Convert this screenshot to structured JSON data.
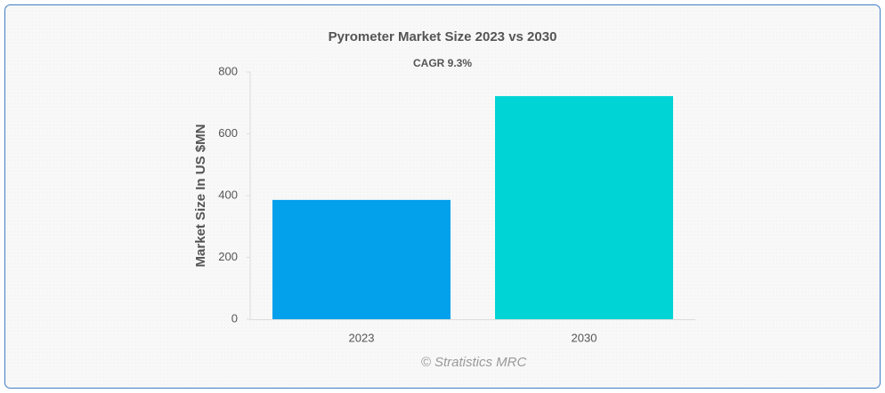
{
  "chart_data": {
    "type": "bar",
    "title": "Pyrometer Market Size 2023 vs 2030",
    "subtitle": "CAGR 9.3%",
    "y_label": "Market Size In US $MN",
    "credit": "© Stratistics MRC",
    "categories": [
      "2023",
      "2030"
    ],
    "values": [
      386,
      722
    ],
    "colors": [
      "#03a0ec",
      "#00d4d4"
    ],
    "ylim": [
      0,
      800
    ],
    "yticks": [
      0,
      200,
      400,
      600,
      800
    ],
    "grid": false
  }
}
